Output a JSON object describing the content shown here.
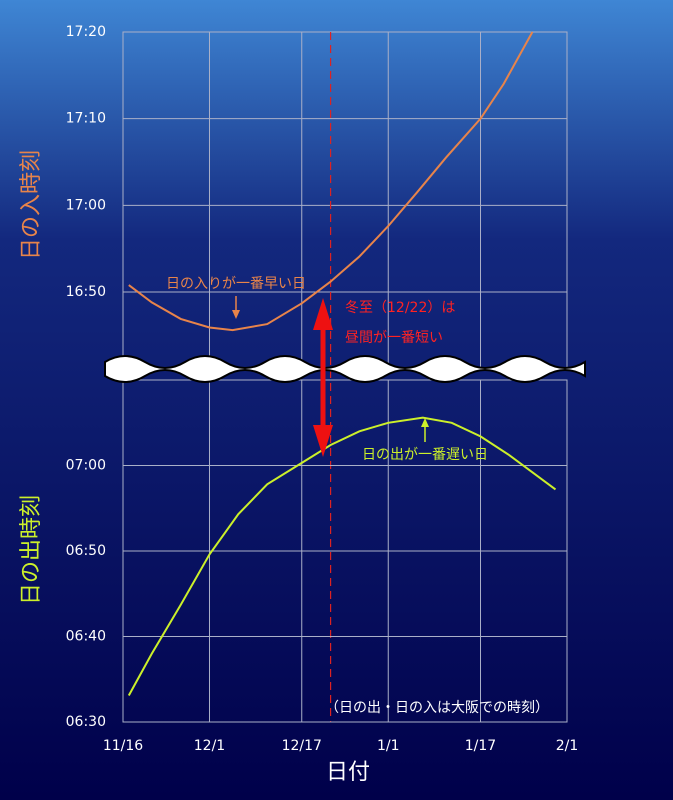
{
  "chart_data": [
    {
      "type": "line",
      "ylabel": "日の入時刻",
      "annotations": [
        "日の入りが一番早い日",
        "冬至（12/22）は",
        "昼間が一番短い"
      ],
      "xlim": [
        0,
        77
      ],
      "vline": 36,
      "x": [
        1,
        5,
        10,
        15,
        19,
        25,
        31,
        36,
        41,
        46,
        51,
        56,
        62,
        66,
        71
      ],
      "series": [
        {
          "name": "日の入",
          "color": "#e8844a",
          "values": [
            1010.8,
            1008.8,
            1006.9,
            1005.9,
            1005.6,
            1006.3,
            1008.7,
            1011.2,
            1014.1,
            1017.6,
            1021.5,
            1025.5,
            1030.0,
            1034.0,
            1040.0
          ]
        }
      ],
      "ylim": [
        1001,
        1040
      ],
      "yticks": [
        {
          "value": 1010,
          "label": "16:50"
        },
        {
          "value": 1020,
          "label": "17:00"
        },
        {
          "value": 1030,
          "label": "17:10"
        },
        {
          "value": 1040,
          "label": "17:20"
        }
      ],
      "grid": true
    },
    {
      "type": "line",
      "ylabel": "日の出時刻",
      "xlabel": "日付",
      "annotations": [
        "日の出が一番遅い日",
        "（日の出・日の入は大阪での時刻）"
      ],
      "xlim": [
        0,
        77
      ],
      "xticks": [
        {
          "value": 0,
          "label": "11/16"
        },
        {
          "value": 15,
          "label": "12/1"
        },
        {
          "value": 31,
          "label": "12/17"
        },
        {
          "value": 46,
          "label": "1/1"
        },
        {
          "value": 62,
          "label": "1/17"
        },
        {
          "value": 77,
          "label": "2/1"
        }
      ],
      "x": [
        1,
        5,
        10,
        15,
        20,
        25,
        31,
        36,
        41,
        46,
        52,
        57,
        62,
        67,
        71,
        75
      ],
      "series": [
        {
          "name": "日の出",
          "color": "#ccf02a",
          "values": [
            393.1,
            398,
            403.7,
            409.6,
            414.3,
            417.8,
            420.3,
            422.4,
            424.0,
            425.0,
            425.6,
            425.0,
            423.4,
            421.2,
            419.2,
            417.2
          ]
        }
      ],
      "ylim": [
        390,
        430
      ],
      "yticks": [
        {
          "value": 390,
          "label": "06:30"
        },
        {
          "value": 400,
          "label": "06:40"
        },
        {
          "value": 410,
          "label": "06:50"
        },
        {
          "value": 420,
          "label": "07:00"
        }
      ],
      "grid": true
    }
  ]
}
